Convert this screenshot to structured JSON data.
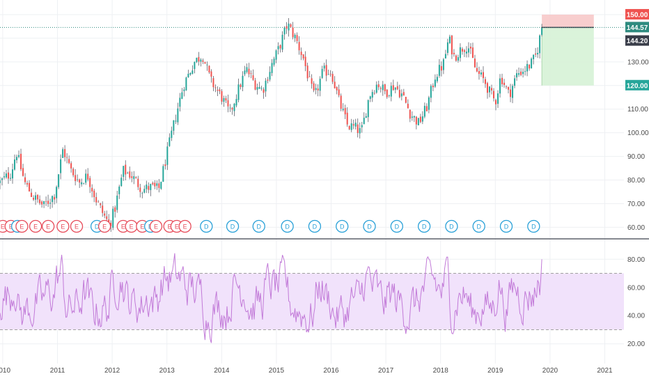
{
  "chart_data": [
    {
      "type": "candlestick",
      "x_axis": {
        "tick_labels": [
          "2010",
          "2011",
          "2012",
          "2013",
          "2014",
          "2015",
          "2016",
          "2017",
          "2018",
          "2019",
          "2020",
          "2021"
        ],
        "range": [
          2009.95,
          2021.35
        ]
      },
      "y_axis": {
        "tick_labels": [
          "60.00",
          "70.00",
          "80.00",
          "90.00",
          "100.00",
          "110.00",
          "120.00",
          "130.00",
          "150.00"
        ],
        "tick_values": [
          60,
          70,
          80,
          90,
          100,
          110,
          120,
          130,
          150
        ],
        "range": [
          56,
          155
        ],
        "scale": "linear",
        "position": "right"
      },
      "grid": true,
      "colors": {
        "up": "#26a69a",
        "down": "#ef5350",
        "wick": "#5d606b"
      },
      "price_anchors": [
        [
          2009.95,
          79
        ],
        [
          2010.15,
          83
        ],
        [
          2010.25,
          92
        ],
        [
          2010.4,
          79
        ],
        [
          2010.55,
          73
        ],
        [
          2010.75,
          69
        ],
        [
          2010.95,
          74
        ],
        [
          2011.1,
          93
        ],
        [
          2011.25,
          84
        ],
        [
          2011.4,
          79
        ],
        [
          2011.55,
          82
        ],
        [
          2011.7,
          72
        ],
        [
          2011.85,
          65
        ],
        [
          2011.95,
          61
        ],
        [
          2012.05,
          68
        ],
        [
          2012.2,
          84
        ],
        [
          2012.35,
          82
        ],
        [
          2012.55,
          76
        ],
        [
          2012.7,
          77
        ],
        [
          2012.85,
          76
        ],
        [
          2013.0,
          91
        ],
        [
          2013.15,
          106
        ],
        [
          2013.3,
          120
        ],
        [
          2013.5,
          130
        ],
        [
          2013.65,
          133
        ],
        [
          2013.8,
          122
        ],
        [
          2014.0,
          115
        ],
        [
          2014.15,
          108
        ],
        [
          2014.3,
          118
        ],
        [
          2014.45,
          127
        ],
        [
          2014.6,
          121
        ],
        [
          2014.75,
          118
        ],
        [
          2014.9,
          128
        ],
        [
          2015.05,
          136
        ],
        [
          2015.2,
          146
        ],
        [
          2015.35,
          140
        ],
        [
          2015.5,
          131
        ],
        [
          2015.62,
          120
        ],
        [
          2015.7,
          115
        ],
        [
          2015.85,
          126
        ],
        [
          2016.0,
          126
        ],
        [
          2016.15,
          113
        ],
        [
          2016.3,
          103
        ],
        [
          2016.45,
          102
        ],
        [
          2016.55,
          100
        ],
        [
          2016.7,
          116
        ],
        [
          2016.85,
          121
        ],
        [
          2017.0,
          117
        ],
        [
          2017.15,
          120
        ],
        [
          2017.3,
          116
        ],
        [
          2017.45,
          108
        ],
        [
          2017.6,
          104
        ],
        [
          2017.75,
          111
        ],
        [
          2017.9,
          124
        ],
        [
          2018.05,
          129
        ],
        [
          2018.15,
          140
        ],
        [
          2018.25,
          132
        ],
        [
          2018.4,
          136
        ],
        [
          2018.5,
          137
        ],
        [
          2018.65,
          126
        ],
        [
          2018.8,
          122
        ],
        [
          2018.9,
          117
        ],
        [
          2019.0,
          113
        ],
        [
          2019.1,
          124
        ],
        [
          2019.25,
          116
        ],
        [
          2019.4,
          125
        ],
        [
          2019.55,
          127
        ],
        [
          2019.65,
          129
        ],
        [
          2019.75,
          133
        ],
        [
          2019.85,
          144.57
        ]
      ],
      "position_tool": {
        "target": 150.0,
        "entry": 144.57,
        "stop": 120.0,
        "x_start": 2019.85,
        "x_end": 2020.8
      },
      "price_tags": [
        {
          "label": "150.00",
          "value": 150.0,
          "color": "#ef5350"
        },
        {
          "label": "144.57",
          "value": 144.57,
          "color": "#2e8b7f"
        },
        {
          "label": "144.20",
          "value": 144.2,
          "color": "#3a3e4a"
        },
        {
          "label": "120.00",
          "value": 120.0,
          "color": "#26a69a"
        }
      ],
      "current_price": 144.57,
      "events": [
        {
          "type": "earnings",
          "label": "E",
          "x": 2010.0
        },
        {
          "type": "earnings",
          "label": "E",
          "x": 2010.15
        },
        {
          "type": "dividend",
          "label": "D",
          "x": 2010.27
        },
        {
          "type": "earnings",
          "label": "E",
          "x": 2010.35
        },
        {
          "type": "earnings",
          "label": "E",
          "x": 2010.6
        },
        {
          "type": "earnings",
          "label": "E",
          "x": 2010.83
        },
        {
          "type": "earnings",
          "label": "E",
          "x": 2011.1
        },
        {
          "type": "earnings",
          "label": "E",
          "x": 2011.35
        },
        {
          "type": "dividend",
          "label": "D",
          "x": 2011.72
        },
        {
          "type": "earnings",
          "label": "E",
          "x": 2011.86
        },
        {
          "type": "earnings",
          "label": "E",
          "x": 2012.2
        },
        {
          "type": "earnings",
          "label": "E",
          "x": 2012.35
        },
        {
          "type": "earnings",
          "label": "E",
          "x": 2012.55
        },
        {
          "type": "dividend",
          "label": "D",
          "x": 2012.7
        },
        {
          "type": "earnings",
          "label": "E",
          "x": 2012.8
        },
        {
          "type": "earnings",
          "label": "E",
          "x": 2013.05
        },
        {
          "type": "earnings",
          "label": "E",
          "x": 2013.18
        },
        {
          "type": "earnings",
          "label": "E",
          "x": 2013.33
        },
        {
          "type": "dividend",
          "label": "D",
          "x": 2013.72
        },
        {
          "type": "dividend",
          "label": "D",
          "x": 2014.2
        },
        {
          "type": "dividend",
          "label": "D",
          "x": 2014.68
        },
        {
          "type": "dividend",
          "label": "D",
          "x": 2015.2
        },
        {
          "type": "dividend",
          "label": "D",
          "x": 2015.7
        },
        {
          "type": "dividend",
          "label": "D",
          "x": 2016.2
        },
        {
          "type": "dividend",
          "label": "D",
          "x": 2016.7
        },
        {
          "type": "dividend",
          "label": "D",
          "x": 2017.2
        },
        {
          "type": "dividend",
          "label": "D",
          "x": 2017.7
        },
        {
          "type": "dividend",
          "label": "D",
          "x": 2018.2
        },
        {
          "type": "dividend",
          "label": "D",
          "x": 2018.7
        },
        {
          "type": "dividend",
          "label": "D",
          "x": 2019.2
        },
        {
          "type": "dividend",
          "label": "D",
          "x": 2019.7
        }
      ]
    },
    {
      "type": "line",
      "indicator": "RSI",
      "y_axis": {
        "tick_labels": [
          "20.00",
          "40.00",
          "60.00",
          "80.00"
        ],
        "tick_values": [
          20,
          40,
          60,
          80
        ],
        "range": [
          8,
          92
        ],
        "position": "right"
      },
      "band": {
        "upper": 70,
        "lower": 30,
        "fill": "#f1e2fb",
        "line": "#a0a0a0"
      },
      "line_color": "#c27ad8",
      "latest_value": 80
    }
  ]
}
